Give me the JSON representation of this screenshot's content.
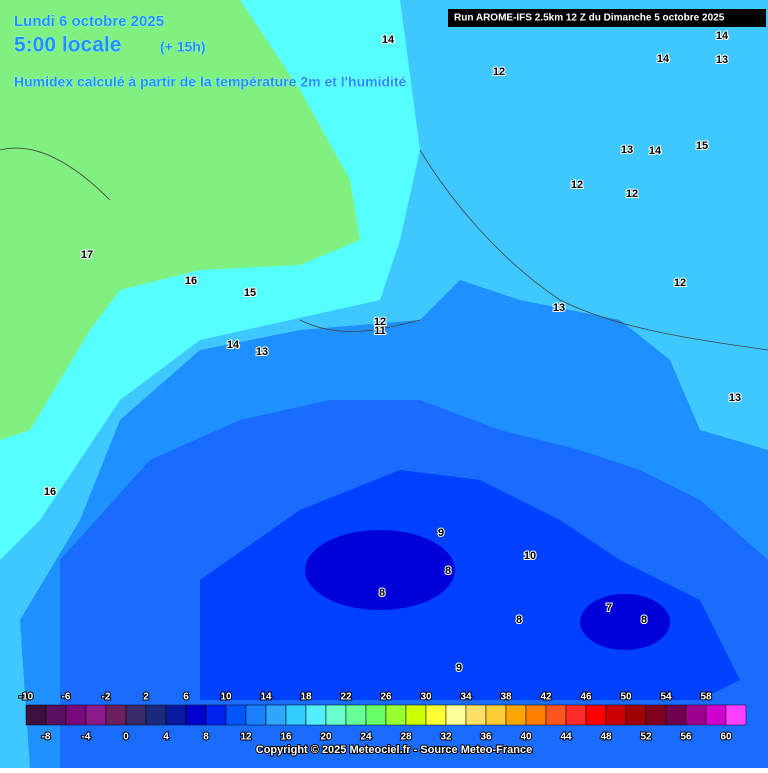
{
  "header": {
    "date": "Lundi 6 octobre 2025",
    "time": "5:00 locale",
    "lead": "(+ 15h)",
    "title": "Humidex calculé à partir de la température 2m et l'humidité",
    "run": "Run AROME-IFS 2.5km 12 Z du Dimanche 5 octobre 2025"
  },
  "map_labels": [
    "14",
    "12",
    "14",
    "14",
    "13",
    "13",
    "14",
    "15",
    "12",
    "12",
    "17",
    "16",
    "15",
    "12",
    "13",
    "12",
    "11",
    "14",
    "13",
    "13",
    "16",
    "9",
    "10",
    "8",
    "8",
    "7",
    "8",
    "8",
    "9"
  ],
  "scale": {
    "values": [
      -10,
      -8,
      -6,
      -4,
      -2,
      0,
      2,
      4,
      6,
      8,
      10,
      12,
      14,
      16,
      18,
      20,
      22,
      24,
      26,
      28,
      30,
      32,
      34,
      36,
      38,
      40,
      42,
      44,
      46,
      48,
      50,
      52,
      54,
      56,
      58,
      60
    ],
    "colors": [
      "#3d0f3d",
      "#5a1060",
      "#7a0a7a",
      "#8c1a8c",
      "#6b1f5e",
      "#3a2a6a",
      "#1a2a7a",
      "#0a1aa0",
      "#0000cc",
      "#0022ee",
      "#0055ff",
      "#1a80ff",
      "#2ea8ff",
      "#33ccff",
      "#55eeff",
      "#66ffcc",
      "#66ff99",
      "#66ff66",
      "#99ff33",
      "#ccff00",
      "#ffff33",
      "#ffff99",
      "#ffe066",
      "#ffcc33",
      "#ffa500",
      "#ff8000",
      "#ff5520",
      "#ff2a2a",
      "#ff0000",
      "#cc0000",
      "#a00000",
      "#800020",
      "#700050",
      "#a00090",
      "#d000d0",
      "#ff40ff"
    ]
  },
  "footer": {
    "copyright": "Copyright © 2025 Meteociel.fr - Source Meteo-France"
  }
}
